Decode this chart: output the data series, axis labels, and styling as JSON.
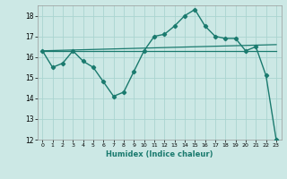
{
  "xlabel": "Humidex (Indice chaleur)",
  "background_color": "#cce8e5",
  "grid_color": "#aad4d0",
  "line_color": "#1a7a6e",
  "xlim": [
    -0.5,
    23.5
  ],
  "ylim": [
    12,
    18.5
  ],
  "yticks": [
    12,
    13,
    14,
    15,
    16,
    17,
    18
  ],
  "xticks": [
    0,
    1,
    2,
    3,
    4,
    5,
    6,
    7,
    8,
    9,
    10,
    11,
    12,
    13,
    14,
    15,
    16,
    17,
    18,
    19,
    20,
    21,
    22,
    23
  ],
  "line1_x": [
    0,
    1,
    2,
    3,
    4,
    5,
    6,
    7,
    8,
    9,
    10,
    11,
    12,
    13,
    14,
    15,
    16,
    17,
    18,
    19,
    20,
    21,
    22,
    23
  ],
  "line1_y": [
    16.3,
    15.5,
    15.7,
    16.3,
    15.8,
    15.5,
    14.8,
    14.1,
    14.3,
    15.3,
    16.3,
    17.0,
    17.1,
    17.5,
    18.0,
    18.3,
    17.5,
    17.0,
    16.9,
    16.9,
    16.3,
    16.5,
    15.1,
    12.0
  ],
  "line2_x": [
    0,
    23
  ],
  "line2_y": [
    16.3,
    16.3
  ],
  "line3_x": [
    0,
    23
  ],
  "line3_y": [
    16.3,
    16.6
  ]
}
